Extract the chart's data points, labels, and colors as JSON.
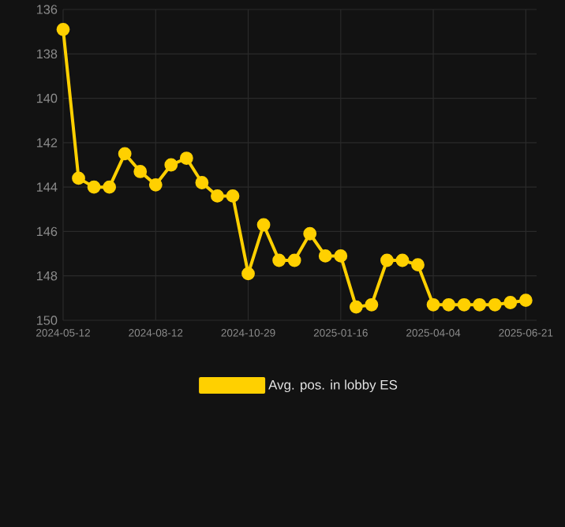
{
  "chart_data": {
    "type": "line",
    "categories": [
      "2024-05-12",
      null,
      null,
      null,
      null,
      null,
      "2024-08-12",
      null,
      null,
      null,
      null,
      null,
      "2024-10-29",
      null,
      null,
      null,
      null,
      null,
      "2025-01-16",
      null,
      null,
      null,
      null,
      null,
      "2025-04-04",
      null,
      null,
      null,
      null,
      null,
      "2025-06-21"
    ],
    "series": [
      {
        "name": "Avg. pos. in lobby ES",
        "color": "#ffd000",
        "values": [
          136.9,
          143.6,
          144.0,
          144.0,
          142.5,
          143.3,
          143.9,
          143.0,
          142.7,
          143.8,
          144.4,
          144.4,
          147.9,
          145.7,
          147.3,
          147.3,
          146.1,
          147.1,
          147.1,
          149.4,
          149.3,
          147.3,
          147.3,
          147.5,
          149.3,
          149.3,
          149.3,
          149.3,
          149.3,
          149.2,
          149.1
        ]
      }
    ],
    "ylim": [
      150,
      136
    ],
    "yticks": [
      136,
      138,
      140,
      142,
      144,
      146,
      148,
      150
    ],
    "grid": true,
    "legend": "bottom",
    "marker": "circle",
    "line_style": "solid"
  }
}
